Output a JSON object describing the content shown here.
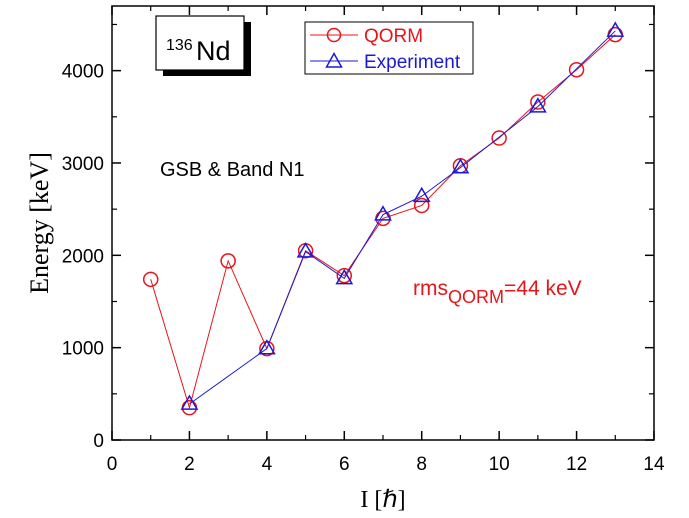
{
  "chart_data": {
    "type": "line",
    "xlabel": "I [ℏ]",
    "ylabel": "Energy [keV]",
    "xlim": [
      0,
      14
    ],
    "ylim": [
      0,
      4700
    ],
    "x_ticks": [
      0,
      2,
      4,
      6,
      8,
      10,
      12,
      14
    ],
    "y_ticks": [
      0,
      1000,
      2000,
      3000,
      4000
    ],
    "grid": false,
    "legend_position": "top-center",
    "series": [
      {
        "name": "QORM",
        "color": "#e8141a",
        "marker": "circle",
        "x": [
          1,
          2,
          3,
          4,
          5,
          6,
          7,
          8,
          9,
          10,
          11,
          12,
          13
        ],
        "y": [
          1740,
          350,
          1940,
          990,
          2050,
          1780,
          2400,
          2540,
          2970,
          3270,
          3660,
          4010,
          4390
        ]
      },
      {
        "name": "Experiment",
        "color": "#1a1ad6",
        "marker": "triangle",
        "x": [
          2,
          4,
          5,
          6,
          7,
          8,
          9,
          11,
          13
        ],
        "y": [
          390,
          990,
          2040,
          1750,
          2440,
          2640,
          2950,
          3610,
          4430
        ]
      }
    ],
    "annotations": {
      "nucleus_mass": "136",
      "nucleus_symbol": "Nd",
      "band_label": "GSB & Band N1",
      "rms_prefix": "rms",
      "rms_sub": "QORM",
      "rms_suffix": "=44 keV"
    }
  },
  "colors": {
    "qorm": "#e8141a",
    "experiment": "#1a1ad6",
    "rms_text": "#e8141a"
  }
}
